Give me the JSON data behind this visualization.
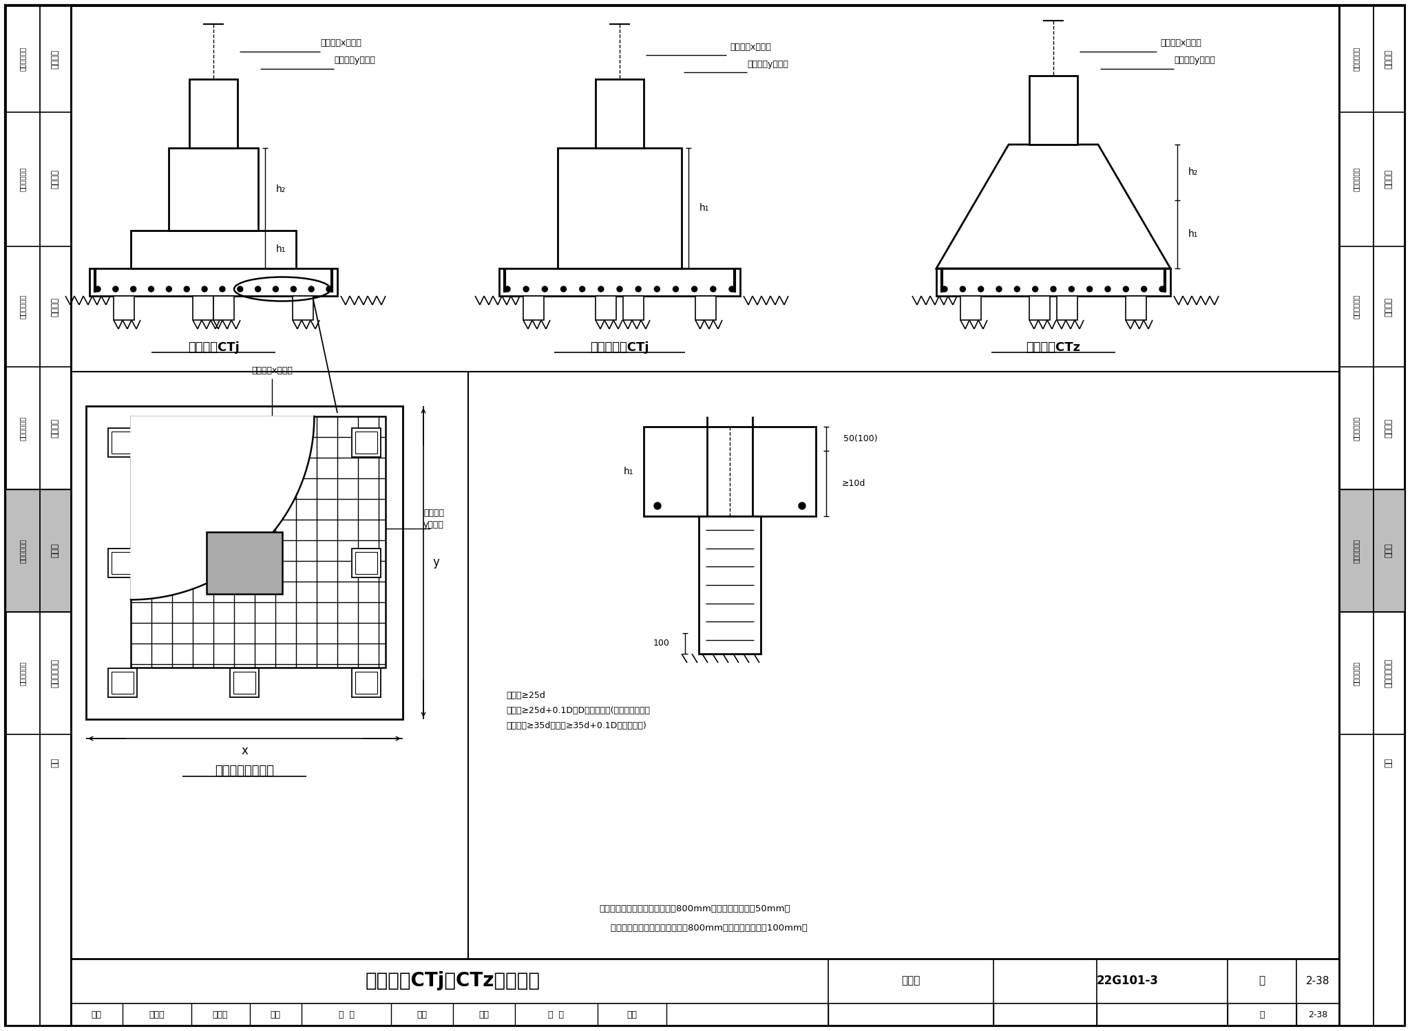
{
  "bg": "#ffffff",
  "lc": "#000000",
  "gray_side": "#bebebe",
  "title_main": "矩形承台CTj和CTz配筋构造",
  "atlas_label": "图集号",
  "atlas_num": "22G101-3",
  "page_num": "2-38",
  "label1": "阶形截面CTj",
  "label2": "单阶形截面CTj",
  "label3": "锥形截面CTz",
  "label4": "矩形承台配筋构造",
  "ann_x": "矩形承台x向配筋",
  "ann_y1": "矩形承台",
  "ann_y2": "y向配筋",
  "note1": "注：当桩直径或桩截面边长小于800mm时，桩顶嵌入承台50mm；",
  "note2": "    当桩径或桩截面边长大于或等于800mm时，桩顶嵌入承台100mm。",
  "d1": "方桩：≥25d",
  "d2": "圆桩：≥25d+0.1D，D为圆桩直径(当伸至端部直段",
  "d3": "长度方桩≥35d或圆桩≥35d+0.1D时可不弯折)",
  "h1": "h₁",
  "h2": "h₂",
  "dim_x": "x",
  "dim_y": "y",
  "embed_dim": "50(100)",
  "pile_dim": "≥10d",
  "bottom_row": [
    "审核",
    "黄志刚",
    "复查审",
    "校对",
    "杨  建",
    "福建",
    "设计",
    "林  蔚",
    "林盈"
  ],
  "side_sections": [
    "一般构造",
    "独立基础",
    "条形基础",
    "筏形基础",
    "桩基础",
    "基础相关构造",
    "附录"
  ],
  "side_sub": "标准构造详图",
  "pile_highlight": "桩基础"
}
